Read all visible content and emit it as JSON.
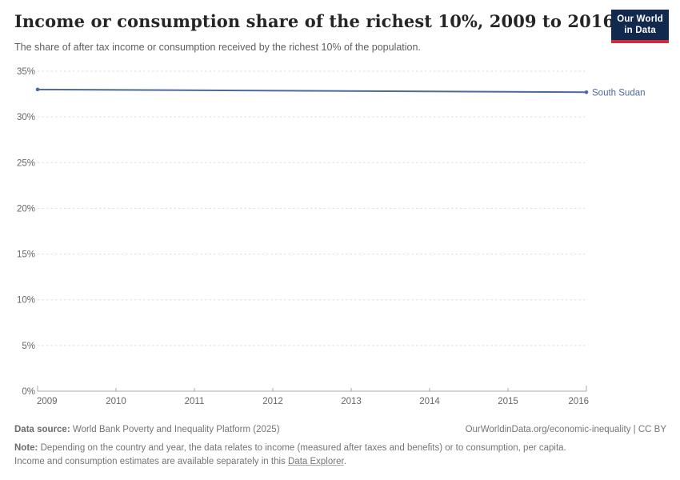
{
  "header": {
    "title": "Income or consumption share of the richest 10%, 2009 to 2016",
    "subtitle": "The share of after tax income or consumption received by the richest 10% of the population.",
    "logo": {
      "line1": "Our World",
      "line2": "in Data",
      "bg_color": "#12294e",
      "accent_color": "#cb2d3e"
    }
  },
  "chart_data": {
    "type": "line",
    "title": "Income or consumption share of the richest 10%, 2009 to 2016",
    "xlabel": "",
    "ylabel": "",
    "xlim": [
      2009,
      2016
    ],
    "ylim": [
      0,
      35
    ],
    "x_ticks": [
      2009,
      2010,
      2011,
      2012,
      2013,
      2014,
      2015,
      2016
    ],
    "y_ticks": [
      0,
      5,
      10,
      15,
      20,
      25,
      30,
      35
    ],
    "y_tick_suffix": "%",
    "grid": "horizontal-dashed",
    "legend_position": "line-end-label",
    "series": [
      {
        "name": "South Sudan",
        "color": "#4c6a9c",
        "points": [
          [
            2009,
            33.0
          ],
          [
            2016,
            32.7
          ]
        ]
      }
    ],
    "colors": {
      "gridline": "#dddddd",
      "axis": "#a8a8a8",
      "tick_label": "#666666"
    }
  },
  "footer": {
    "datasource_label": "Data source:",
    "datasource_text": " World Bank Poverty and Inequality Platform (2025)",
    "rights": "OurWorldinData.org/economic-inequality | CC BY",
    "note_label": "Note:",
    "note_line1": " Depending on the country and year, the data relates to income (measured after taxes and benefits) or to consumption, per capita.",
    "note_line2_pre": "Income and consumption estimates are available separately in this ",
    "note_link": "Data Explorer",
    "note_line2_post": "."
  }
}
